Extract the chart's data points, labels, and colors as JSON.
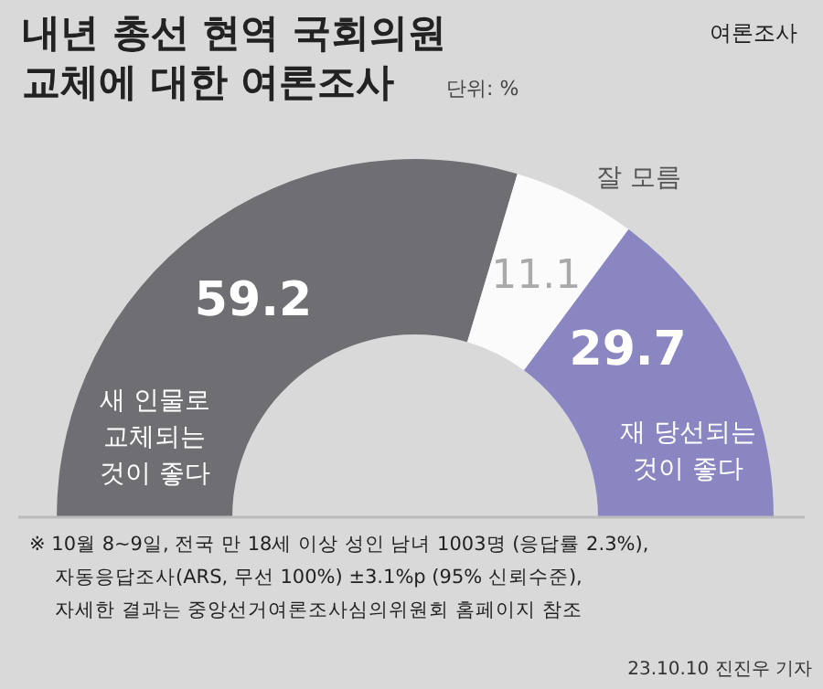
{
  "chart_data": {
    "type": "donut",
    "title": "내년 총선 현역 국회의원 교체에 대한 여론조사",
    "subtitle": "단위: %",
    "categories": [
      "새 인물로 교체되는 것이 좋다",
      "잘 모름",
      "재 당선되는 것이 좋다"
    ],
    "values": [
      59.2,
      11.1,
      29.7
    ],
    "colors": [
      "#6e6e73",
      "#fbfbfb",
      "#8a86c2"
    ],
    "data_labels": true,
    "legend": false,
    "annotations": [
      "여론조사",
      "※ 10월 8~9일, 전국 만 18세 이상 성인 남녀 1003명 (응답률 2.3%),",
      "자동응답조사(ARS, 무선 100%) ±3.1%p (95% 신뢰수준),",
      "자세한 결과는 중앙선거여론조사심의위원회 홈페이지 참조",
      "23.10.10 진진우 기자"
    ]
  }
}
